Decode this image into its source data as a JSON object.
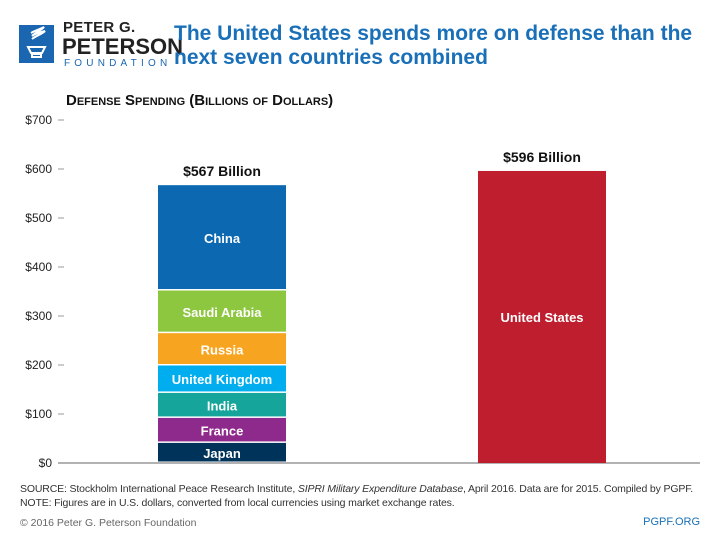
{
  "logo": {
    "line1": "PETER G.",
    "line2": "PETERSON",
    "line3": "FOUNDATION"
  },
  "title": "The United States spends more on defense than the next seven countries combined",
  "chart_data": {
    "type": "bar",
    "subtitle": "Defense Spending (Billions of Dollars)",
    "ylim": [
      0,
      700
    ],
    "yticks": [
      "$0",
      "$100",
      "$200",
      "$300",
      "$400",
      "$500",
      "$600",
      "$700"
    ],
    "bars": [
      {
        "total_label": "$567 Billion",
        "segments": [
          {
            "name": "Japan",
            "value": 41,
            "color": "#003359"
          },
          {
            "name": "France",
            "value": 51,
            "color": "#8e2a8b"
          },
          {
            "name": "India",
            "value": 51,
            "color": "#16a59a"
          },
          {
            "name": "United Kingdom",
            "value": 56,
            "color": "#00aeef"
          },
          {
            "name": "Russia",
            "value": 66,
            "color": "#f7a521"
          },
          {
            "name": "Saudi Arabia",
            "value": 87,
            "color": "#8dc63f"
          },
          {
            "name": "China",
            "value": 215,
            "color": "#0c68b1"
          }
        ]
      },
      {
        "total_label": "$596 Billion",
        "segments": [
          {
            "name": "United States",
            "value": 596,
            "color": "#be1e2d"
          }
        ]
      }
    ]
  },
  "footer": {
    "source": "SOURCE: Stockholm International Peace Research Institute, SIPRI Military Expenditure Database, April 2016. Data are for 2015. Compiled by PGPF.",
    "note": "NOTE: Figures are in U.S. dollars, converted from local currencies using market exchange rates.",
    "copyright": "© 2016 Peter G. Peterson Foundation",
    "site": "PGPF.ORG"
  }
}
